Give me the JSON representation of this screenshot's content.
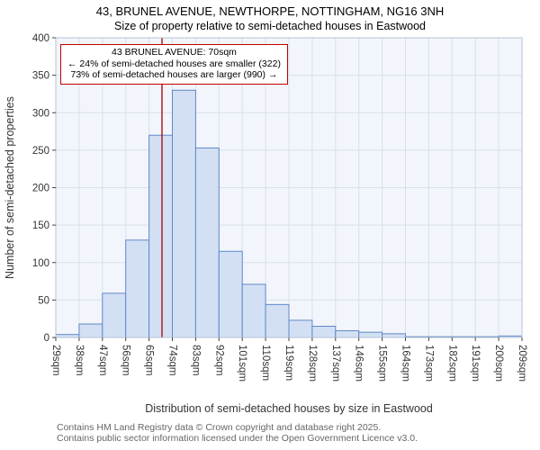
{
  "title": "43, BRUNEL AVENUE, NEWTHORPE, NOTTINGHAM, NG16 3NH",
  "subtitle": "Size of property relative to semi-detached houses in Eastwood",
  "chart_data": {
    "type": "bar",
    "title": "43, BRUNEL AVENUE, NEWTHORPE, NOTTINGHAM, NG16 3NH",
    "subtitle": "Size of property relative to semi-detached houses in Eastwood",
    "xlabel": "Distribution of semi-detached houses by size in Eastwood",
    "ylabel": "Number of semi-detached properties",
    "ylim": [
      0,
      400
    ],
    "yticks": [
      0,
      50,
      100,
      150,
      200,
      250,
      300,
      350,
      400
    ],
    "bin_edges": [
      29,
      38,
      47,
      56,
      65,
      74,
      83,
      92,
      101,
      110,
      119,
      128,
      137,
      146,
      155,
      164,
      173,
      182,
      191,
      200,
      209
    ],
    "x_tick_labels": [
      "29sqm",
      "38sqm",
      "47sqm",
      "56sqm",
      "65sqm",
      "74sqm",
      "83sqm",
      "92sqm",
      "101sqm",
      "110sqm",
      "119sqm",
      "128sqm",
      "137sqm",
      "146sqm",
      "155sqm",
      "164sqm",
      "173sqm",
      "182sqm",
      "191sqm",
      "200sqm",
      "209sqm"
    ],
    "values": [
      4,
      18,
      59,
      130,
      270,
      330,
      253,
      115,
      71,
      44,
      23,
      15,
      9,
      7,
      5,
      1,
      1,
      1,
      1,
      2
    ],
    "grid": true,
    "marker": {
      "value": 70,
      "title": "43 BRUNEL AVENUE: 70sqm",
      "smaller_line": "← 24% of semi-detached houses are smaller (322)",
      "larger_line": "73% of semi-detached houses are larger (990) →",
      "color": "#a40000"
    },
    "colors": {
      "bar_fill": "#d3e0f4",
      "bar_stroke": "#6089c8",
      "grid": "#d8dfed",
      "plot_bg": "#f2f5fb",
      "axis_frame": "#b9c2d4",
      "tick": "#444444",
      "annotation_border": "#c00000"
    }
  },
  "footer": {
    "line1": "Contains HM Land Registry data © Crown copyright and database right 2025.",
    "line2": "Contains public sector information licensed under the Open Government Licence v3.0."
  }
}
